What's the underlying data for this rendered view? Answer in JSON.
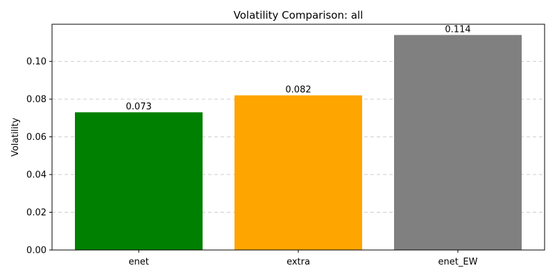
{
  "chart_data": {
    "type": "bar",
    "title": "Volatility Comparison: all",
    "xlabel": "",
    "ylabel": "Volatility",
    "categories": [
      "enet",
      "extra",
      "enet_EW"
    ],
    "values": [
      0.073,
      0.082,
      0.114
    ],
    "value_labels": [
      "0.073",
      "0.082",
      "0.114"
    ],
    "colors": [
      "#008000",
      "#ffa500",
      "#808080"
    ],
    "ylim": [
      0,
      0.1197
    ],
    "yticks": [
      0.0,
      0.02,
      0.04,
      0.06,
      0.08,
      0.1
    ],
    "ytick_labels": [
      "0.00",
      "0.02",
      "0.04",
      "0.06",
      "0.08",
      "0.10"
    ],
    "grid": "y-dashed",
    "legend": "none"
  }
}
